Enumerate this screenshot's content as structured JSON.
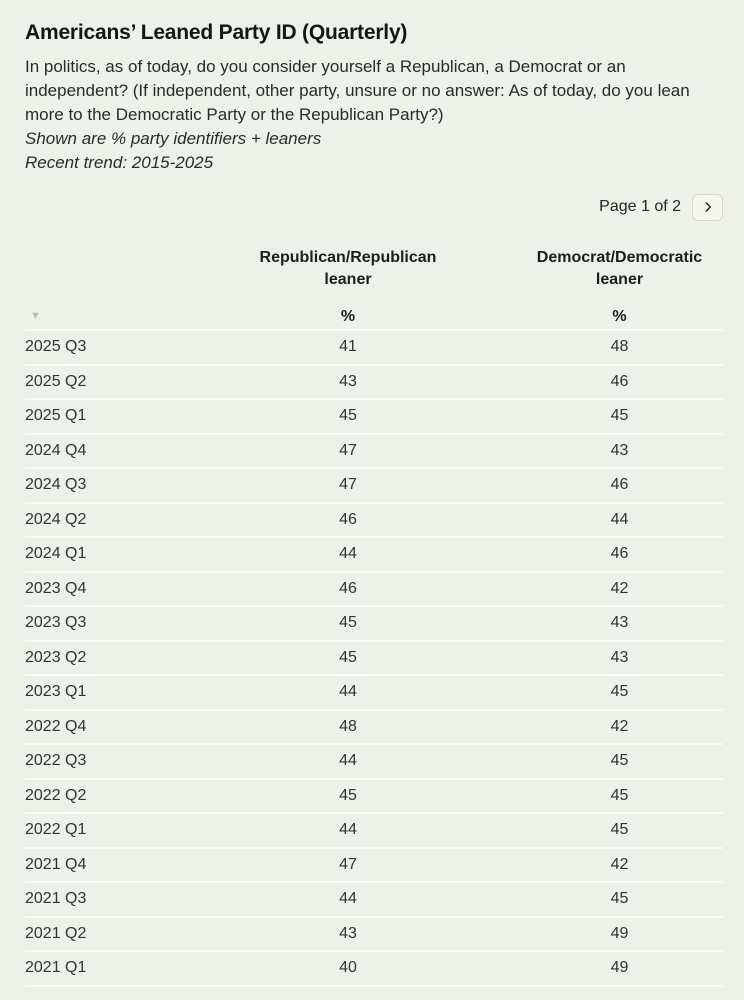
{
  "header": {
    "title": "Americans’ Leaned Party ID (Quarterly)",
    "question": "In politics, as of today, do you consider yourself a Republican, a Democrat or an independent? (If independent, other party, unsure or no answer: As of today, do you lean more to the Democratic Party or the Republican Party?)",
    "note_shown": "Shown are % party identifiers + leaners",
    "note_trend": "Recent trend: 2015-2025"
  },
  "pagination": {
    "label": "Page 1 of 2",
    "next_icon": "chevron-right"
  },
  "colors": {
    "background": "#edf1ea",
    "divider": "#f9fbf5",
    "text": "#30352f",
    "button_bg": "#f4f6ef",
    "button_border": "#d4d8cd",
    "sort_icon": "#b5bab1"
  },
  "table": {
    "sort_icon": "▼",
    "columns": [
      {
        "label": "Republican/Republican leaner",
        "unit": "%"
      },
      {
        "label": "Democrat/Democratic leaner",
        "unit": "%"
      }
    ],
    "rows": [
      {
        "quarter": "2025 Q3",
        "rep": "41",
        "dem": "48"
      },
      {
        "quarter": "2025 Q2",
        "rep": "43",
        "dem": "46"
      },
      {
        "quarter": "2025 Q1",
        "rep": "45",
        "dem": "45"
      },
      {
        "quarter": "2024 Q4",
        "rep": "47",
        "dem": "43"
      },
      {
        "quarter": "2024 Q3",
        "rep": "47",
        "dem": "46"
      },
      {
        "quarter": "2024 Q2",
        "rep": "46",
        "dem": "44"
      },
      {
        "quarter": "2024 Q1",
        "rep": "44",
        "dem": "46"
      },
      {
        "quarter": "2023 Q4",
        "rep": "46",
        "dem": "42"
      },
      {
        "quarter": "2023 Q3",
        "rep": "45",
        "dem": "43"
      },
      {
        "quarter": "2023 Q2",
        "rep": "45",
        "dem": "43"
      },
      {
        "quarter": "2023 Q1",
        "rep": "44",
        "dem": "45"
      },
      {
        "quarter": "2022 Q4",
        "rep": "48",
        "dem": "42"
      },
      {
        "quarter": "2022 Q3",
        "rep": "44",
        "dem": "45"
      },
      {
        "quarter": "2022 Q2",
        "rep": "45",
        "dem": "45"
      },
      {
        "quarter": "2022 Q1",
        "rep": "44",
        "dem": "45"
      },
      {
        "quarter": "2021 Q4",
        "rep": "47",
        "dem": "42"
      },
      {
        "quarter": "2021 Q3",
        "rep": "44",
        "dem": "45"
      },
      {
        "quarter": "2021 Q2",
        "rep": "43",
        "dem": "49"
      },
      {
        "quarter": "2021 Q1",
        "rep": "40",
        "dem": "49"
      }
    ]
  },
  "chart_data": {
    "type": "table",
    "title": "Americans’ Leaned Party ID (Quarterly)",
    "subtitle": "Shown are % party identifiers + leaners",
    "trend": "Recent trend: 2015-2025",
    "page": "Page 1 of 2",
    "categories": [
      "2025 Q3",
      "2025 Q2",
      "2025 Q1",
      "2024 Q4",
      "2024 Q3",
      "2024 Q2",
      "2024 Q1",
      "2023 Q4",
      "2023 Q3",
      "2023 Q2",
      "2023 Q1",
      "2022 Q4",
      "2022 Q3",
      "2022 Q2",
      "2022 Q1",
      "2021 Q4",
      "2021 Q3",
      "2021 Q2",
      "2021 Q1"
    ],
    "series": [
      {
        "name": "Republican/Republican leaner",
        "unit": "%",
        "values": [
          41,
          43,
          45,
          47,
          47,
          46,
          44,
          46,
          45,
          45,
          44,
          48,
          44,
          45,
          44,
          47,
          44,
          43,
          40
        ]
      },
      {
        "name": "Democrat/Democratic leaner",
        "unit": "%",
        "values": [
          48,
          46,
          45,
          43,
          46,
          44,
          46,
          42,
          43,
          43,
          45,
          42,
          45,
          45,
          45,
          42,
          45,
          49,
          49
        ]
      }
    ]
  }
}
